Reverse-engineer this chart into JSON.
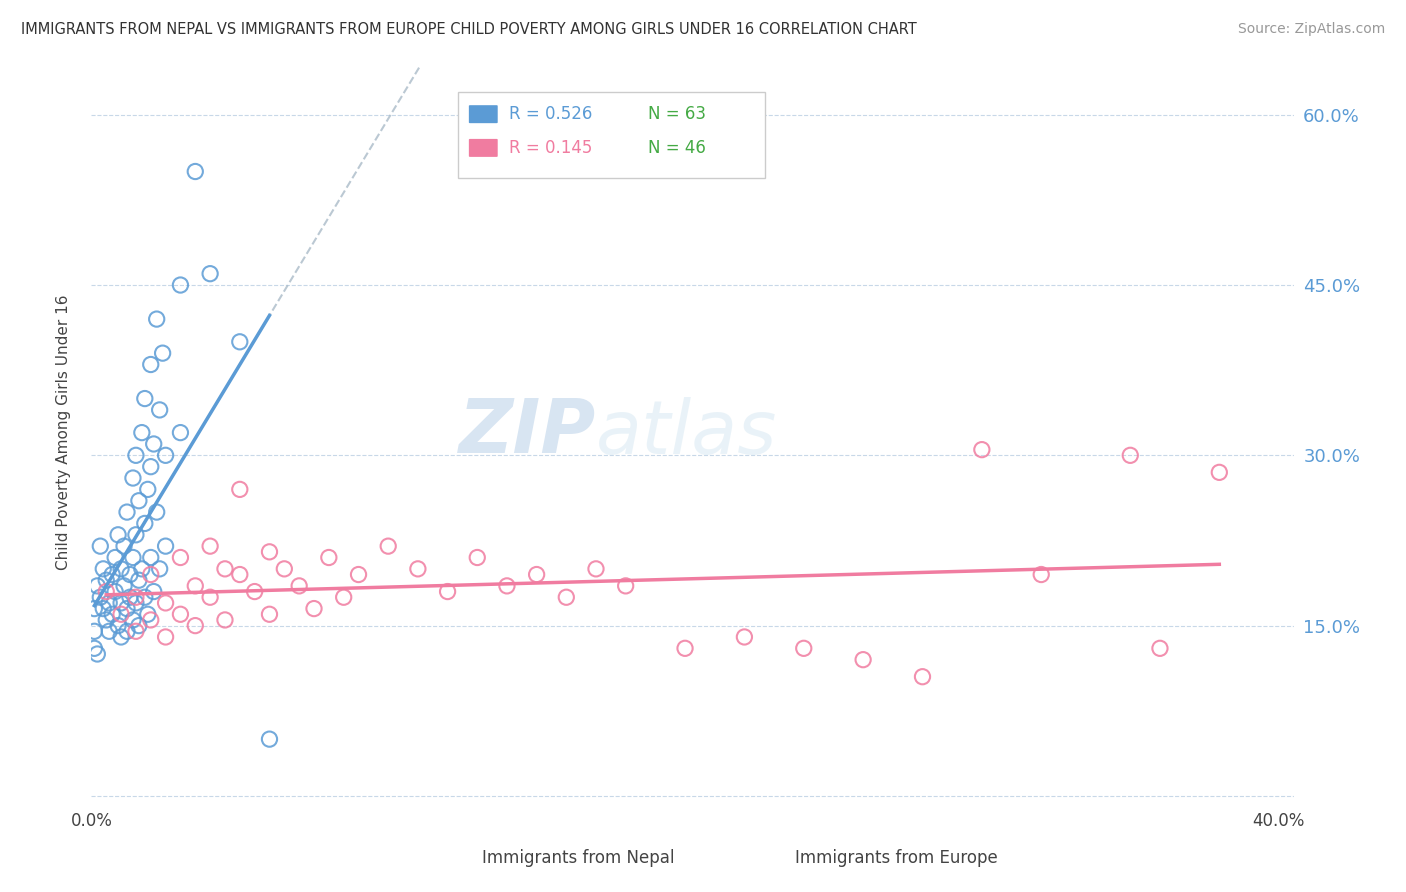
{
  "title": "IMMIGRANTS FROM NEPAL VS IMMIGRANTS FROM EUROPE CHILD POVERTY AMONG GIRLS UNDER 16 CORRELATION CHART",
  "source": "Source: ZipAtlas.com",
  "ylabel": "Child Poverty Among Girls Under 16",
  "nepal_color": "#5b9bd5",
  "europe_color": "#f07ca0",
  "nepal_R": 0.526,
  "nepal_N": 63,
  "europe_R": 0.145,
  "europe_N": 46,
  "ytick_color": "#5b9bd5",
  "grid_color": "#c8d8e8",
  "watermark_color": "#c8dff0",
  "nepal_scatter": [
    [
      0.002,
      0.185
    ],
    [
      0.003,
      0.175
    ],
    [
      0.003,
      0.22
    ],
    [
      0.004,
      0.165
    ],
    [
      0.004,
      0.2
    ],
    [
      0.005,
      0.155
    ],
    [
      0.005,
      0.19
    ],
    [
      0.006,
      0.145
    ],
    [
      0.006,
      0.17
    ],
    [
      0.007,
      0.195
    ],
    [
      0.007,
      0.16
    ],
    [
      0.008,
      0.21
    ],
    [
      0.008,
      0.18
    ],
    [
      0.009,
      0.15
    ],
    [
      0.009,
      0.23
    ],
    [
      0.01,
      0.2
    ],
    [
      0.01,
      0.17
    ],
    [
      0.01,
      0.14
    ],
    [
      0.011,
      0.22
    ],
    [
      0.011,
      0.185
    ],
    [
      0.012,
      0.25
    ],
    [
      0.012,
      0.165
    ],
    [
      0.012,
      0.145
    ],
    [
      0.013,
      0.195
    ],
    [
      0.013,
      0.175
    ],
    [
      0.014,
      0.28
    ],
    [
      0.014,
      0.21
    ],
    [
      0.014,
      0.155
    ],
    [
      0.015,
      0.3
    ],
    [
      0.015,
      0.23
    ],
    [
      0.015,
      0.17
    ],
    [
      0.016,
      0.26
    ],
    [
      0.016,
      0.19
    ],
    [
      0.016,
      0.15
    ],
    [
      0.017,
      0.32
    ],
    [
      0.017,
      0.2
    ],
    [
      0.018,
      0.35
    ],
    [
      0.018,
      0.24
    ],
    [
      0.018,
      0.175
    ],
    [
      0.019,
      0.27
    ],
    [
      0.019,
      0.16
    ],
    [
      0.02,
      0.38
    ],
    [
      0.02,
      0.29
    ],
    [
      0.02,
      0.21
    ],
    [
      0.021,
      0.31
    ],
    [
      0.021,
      0.18
    ],
    [
      0.022,
      0.42
    ],
    [
      0.022,
      0.25
    ],
    [
      0.023,
      0.34
    ],
    [
      0.023,
      0.2
    ],
    [
      0.024,
      0.39
    ],
    [
      0.025,
      0.3
    ],
    [
      0.025,
      0.22
    ],
    [
      0.03,
      0.45
    ],
    [
      0.03,
      0.32
    ],
    [
      0.035,
      0.55
    ],
    [
      0.04,
      0.46
    ],
    [
      0.05,
      0.4
    ],
    [
      0.001,
      0.165
    ],
    [
      0.001,
      0.145
    ],
    [
      0.001,
      0.13
    ],
    [
      0.002,
      0.125
    ],
    [
      0.06,
      0.05
    ]
  ],
  "europe_scatter": [
    [
      0.005,
      0.18
    ],
    [
      0.01,
      0.16
    ],
    [
      0.015,
      0.175
    ],
    [
      0.015,
      0.145
    ],
    [
      0.02,
      0.195
    ],
    [
      0.02,
      0.155
    ],
    [
      0.025,
      0.17
    ],
    [
      0.025,
      0.14
    ],
    [
      0.03,
      0.21
    ],
    [
      0.03,
      0.16
    ],
    [
      0.035,
      0.185
    ],
    [
      0.035,
      0.15
    ],
    [
      0.04,
      0.22
    ],
    [
      0.04,
      0.175
    ],
    [
      0.045,
      0.2
    ],
    [
      0.045,
      0.155
    ],
    [
      0.05,
      0.27
    ],
    [
      0.05,
      0.195
    ],
    [
      0.055,
      0.18
    ],
    [
      0.06,
      0.215
    ],
    [
      0.06,
      0.16
    ],
    [
      0.065,
      0.2
    ],
    [
      0.07,
      0.185
    ],
    [
      0.075,
      0.165
    ],
    [
      0.08,
      0.21
    ],
    [
      0.085,
      0.175
    ],
    [
      0.09,
      0.195
    ],
    [
      0.1,
      0.22
    ],
    [
      0.11,
      0.2
    ],
    [
      0.12,
      0.18
    ],
    [
      0.13,
      0.21
    ],
    [
      0.14,
      0.185
    ],
    [
      0.15,
      0.195
    ],
    [
      0.16,
      0.175
    ],
    [
      0.17,
      0.2
    ],
    [
      0.18,
      0.185
    ],
    [
      0.2,
      0.13
    ],
    [
      0.22,
      0.14
    ],
    [
      0.24,
      0.13
    ],
    [
      0.26,
      0.12
    ],
    [
      0.28,
      0.105
    ],
    [
      0.3,
      0.305
    ],
    [
      0.32,
      0.195
    ],
    [
      0.35,
      0.3
    ],
    [
      0.36,
      0.13
    ],
    [
      0.38,
      0.285
    ]
  ],
  "xlim": [
    0.0,
    0.405
  ],
  "ylim": [
    -0.01,
    0.65
  ],
  "yticks": [
    0.0,
    0.15,
    0.3,
    0.45,
    0.6
  ],
  "ytick_labels": [
    "",
    "15.0%",
    "30.0%",
    "45.0%",
    "60.0%"
  ],
  "xticks": [
    0.0,
    0.1,
    0.2,
    0.3,
    0.4
  ],
  "xtick_labels": [
    "0.0%",
    "",
    "",
    "",
    "40.0%"
  ]
}
